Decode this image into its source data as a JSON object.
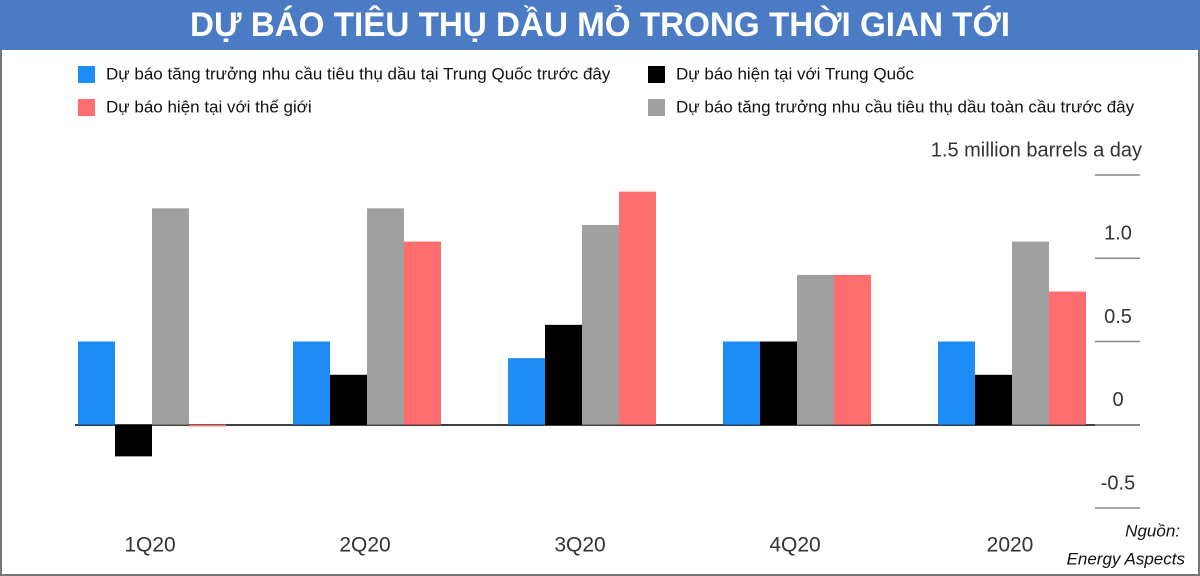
{
  "chart_data": {
    "type": "bar",
    "title": "DỰ BÁO TIÊU THỤ DẦU MỎ TRONG THỜI GIAN TỚI",
    "categories": [
      "1Q20",
      "2Q20",
      "3Q20",
      "4Q20",
      "2020"
    ],
    "series": [
      {
        "name": "Dự báo tăng trưởng nhu cầu tiêu thụ dầu tại Trung Quốc trước đây",
        "color": "#1e8cf5",
        "values": [
          0.5,
          0.5,
          0.4,
          0.5,
          0.5
        ]
      },
      {
        "name": "Dự báo hiện tại với Trung Quốc",
        "color": "#000000",
        "values": [
          -0.19,
          0.3,
          0.6,
          0.5,
          0.3
        ]
      },
      {
        "name": "Dự báo tăng trưởng nhu cầu tiêu thụ dầu toàn cầu trước đây",
        "color": "#a0a0a0",
        "values": [
          1.3,
          1.3,
          1.2,
          0.9,
          1.1
        ]
      },
      {
        "name": "Dự báo hiện tại với thế giới",
        "color": "#ff6e6e",
        "values": [
          -0.01,
          1.1,
          1.4,
          0.9,
          0.8
        ]
      }
    ],
    "ylim": [
      -0.5,
      1.5
    ],
    "yticks": [
      -0.5,
      0,
      0.5,
      {
        "value": 1,
        "label": "1.0"
      },
      {
        "value": 1.5,
        "label": "1.5 million barrels a day"
      }
    ],
    "grid": false,
    "source": [
      "Nguồn:",
      "Energy Aspects"
    ]
  }
}
